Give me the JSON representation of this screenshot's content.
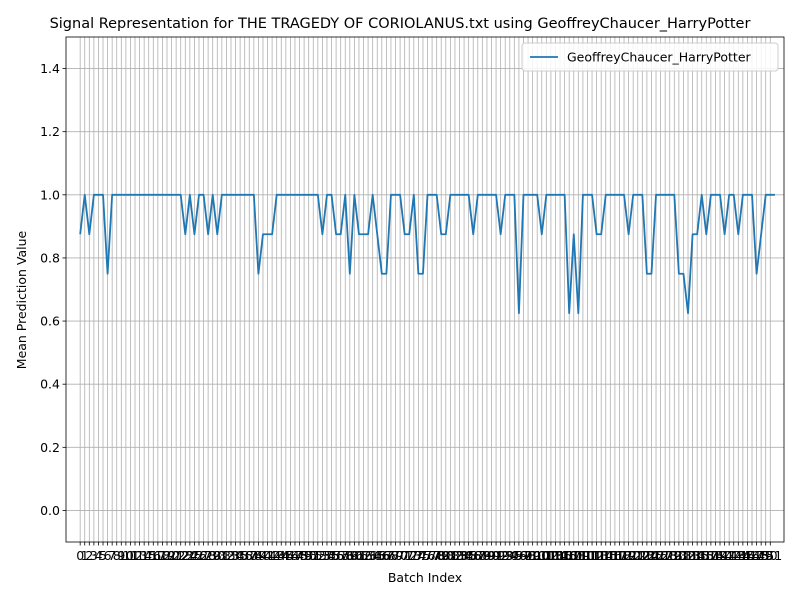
{
  "chart_data": {
    "type": "line",
    "title": "Signal Representation for THE TRAGEDY OF CORIOLANUS.txt using GeoffreyChaucer_HarryPotter",
    "xlabel": "Batch Index",
    "ylabel": "Mean Prediction Value",
    "xlim": [
      -3.1,
      154
    ],
    "ylim": [
      -0.1,
      1.5
    ],
    "yticks": [
      0.0,
      0.2,
      0.4,
      0.6,
      0.8,
      1.0,
      1.2,
      1.4
    ],
    "ytick_labels": [
      "0.0",
      "0.2",
      "0.4",
      "0.6",
      "0.8",
      "1.0",
      "1.2",
      "1.4"
    ],
    "x_tick_step": 1,
    "x_tick_count": 152,
    "grid": true,
    "legend_position": "top-right",
    "colors": {
      "series": "#1f77b4",
      "grid": "#b0b0b0",
      "axes": "#000000"
    },
    "series": [
      {
        "name": "GeoffreyChaucer_HarryPotter",
        "x_start": 0,
        "values": [
          0.875,
          1.0,
          0.875,
          1.0,
          1.0,
          1.0,
          0.75,
          1.0,
          1.0,
          1.0,
          1.0,
          1.0,
          1.0,
          1.0,
          1.0,
          1.0,
          1.0,
          1.0,
          1.0,
          1.0,
          1.0,
          1.0,
          1.0,
          0.875,
          1.0,
          0.875,
          1.0,
          1.0,
          0.875,
          1.0,
          0.875,
          1.0,
          1.0,
          1.0,
          1.0,
          1.0,
          1.0,
          1.0,
          1.0,
          0.75,
          0.875,
          0.875,
          0.875,
          1.0,
          1.0,
          1.0,
          1.0,
          1.0,
          1.0,
          1.0,
          1.0,
          1.0,
          1.0,
          0.875,
          1.0,
          1.0,
          0.875,
          0.875,
          1.0,
          0.75,
          1.0,
          0.875,
          0.875,
          0.875,
          1.0,
          0.875,
          0.75,
          0.75,
          1.0,
          1.0,
          1.0,
          0.875,
          0.875,
          1.0,
          0.75,
          0.75,
          1.0,
          1.0,
          1.0,
          0.875,
          0.875,
          1.0,
          1.0,
          1.0,
          1.0,
          1.0,
          0.875,
          1.0,
          1.0,
          1.0,
          1.0,
          1.0,
          0.875,
          1.0,
          1.0,
          1.0,
          0.625,
          1.0,
          1.0,
          1.0,
          1.0,
          0.875,
          1.0,
          1.0,
          1.0,
          1.0,
          1.0,
          0.625,
          0.875,
          0.625,
          1.0,
          1.0,
          1.0,
          0.875,
          0.875,
          1.0,
          1.0,
          1.0,
          1.0,
          1.0,
          0.875,
          1.0,
          1.0,
          1.0,
          0.75,
          0.75,
          1.0,
          1.0,
          1.0,
          1.0,
          1.0,
          0.75,
          0.75,
          0.625,
          0.875,
          0.875,
          1.0,
          0.875,
          1.0,
          1.0,
          1.0,
          0.875,
          1.0,
          1.0,
          0.875,
          1.0,
          1.0,
          1.0,
          0.75,
          0.875,
          1.0,
          1.0,
          1.0
        ]
      }
    ]
  }
}
